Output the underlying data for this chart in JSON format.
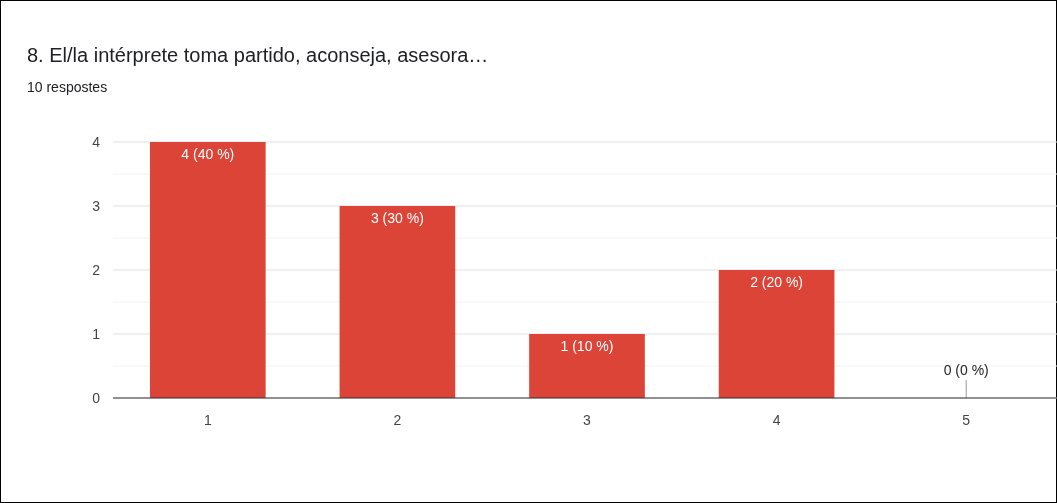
{
  "chart_data": {
    "type": "bar",
    "title": "8. El/la intérprete toma partido, aconseja, asesora…",
    "subtitle": "10 respostes",
    "categories": [
      "1",
      "2",
      "3",
      "4",
      "5"
    ],
    "values": [
      4,
      3,
      1,
      2,
      0
    ],
    "value_labels": [
      "4 (40 %)",
      "3 (30 %)",
      "1 (10 %)",
      "2 (20 %)",
      "0 (0 %)"
    ],
    "color": "#db4437",
    "ylim": [
      0,
      4
    ],
    "yticks": [
      0,
      {
        "value": 0.5,
        "label": null
      },
      1,
      {
        "value": 1.5,
        "label": null
      },
      2,
      {
        "value": 2.5,
        "label": null
      },
      3,
      {
        "value": 3.5,
        "label": null
      },
      4
    ],
    "grid": "y"
  }
}
